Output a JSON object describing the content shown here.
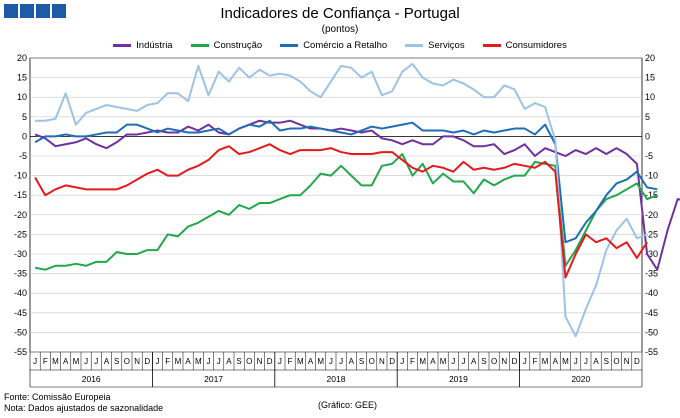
{
  "title": "Indicadores de Confiança - Portugal",
  "subtitle": "(pontos)",
  "footer": {
    "source": "Fonte: Comissão Europeia",
    "note": "Nota: Dados ajustados de sazonalidade",
    "credit": "(Gráfico: GEE)"
  },
  "chart_data": {
    "type": "line",
    "ylim": [
      -55,
      20
    ],
    "yticks": [
      20,
      15,
      10,
      5,
      0,
      -5,
      -10,
      -15,
      -20,
      -25,
      -30,
      -35,
      -40,
      -45,
      -50,
      -55
    ],
    "grid": true,
    "legend_placement": "top-center",
    "month_labels": [
      "J",
      "F",
      "M",
      "A",
      "M",
      "J",
      "J",
      "A",
      "S",
      "O",
      "N",
      "D"
    ],
    "years": [
      "2016",
      "2017",
      "2018",
      "2019",
      "2020"
    ],
    "series": [
      {
        "name": "Indústria",
        "color": "#7030a0",
        "values": [
          0.5,
          -0.5,
          -2.5,
          -2,
          -1.5,
          -0.5,
          -2,
          -3,
          -1.5,
          0.5,
          0.5,
          1,
          1.5,
          1,
          1,
          2.5,
          1.5,
          3,
          1,
          0.5,
          2,
          3,
          4,
          3.5,
          3.5,
          4,
          3,
          2,
          2,
          1.5,
          2,
          1.5,
          1,
          1.5,
          -0.5,
          -1,
          -2,
          -1,
          -2,
          -2,
          0,
          0,
          -1,
          -2.5,
          -2.5,
          -2,
          -4.5,
          -3.5,
          -2,
          -5,
          -3,
          -4,
          -5,
          -3.5,
          -4.5,
          -3,
          -4.5,
          -3,
          -4.5,
          -7,
          -30,
          -34,
          -24,
          -16,
          -16.5,
          -17,
          -16.5,
          -18,
          -17
        ]
      },
      {
        "name": "Construção",
        "color": "#22a84a",
        "values": [
          -33.5,
          -34,
          -33,
          -33,
          -32.5,
          -33,
          -32,
          -32,
          -29.5,
          -30,
          -30,
          -29,
          -29,
          -25,
          -25.5,
          -23,
          -22,
          -20.5,
          -19,
          -20,
          -17.5,
          -18.5,
          -17,
          -17,
          -16,
          -15,
          -15,
          -12.5,
          -9.5,
          -10,
          -7.5,
          -10,
          -12.5,
          -12.5,
          -7.5,
          -7,
          -4.5,
          -10,
          -7,
          -12,
          -9.5,
          -11.5,
          -11.5,
          -14.5,
          -11,
          -12.5,
          -11,
          -10,
          -10,
          -6.5,
          -7,
          -7.5,
          -33,
          -29,
          -24,
          -19,
          -16,
          -15,
          -13.5,
          -12,
          -16,
          -15
        ]
      },
      {
        "name": "Comércio a Retalho",
        "color": "#1f6eb5",
        "values": [
          -1.5,
          0,
          0,
          0.5,
          0,
          0,
          0.5,
          1,
          1,
          3,
          3,
          2,
          1,
          2,
          1.5,
          1,
          1,
          1.5,
          2,
          0.5,
          2,
          3,
          2.5,
          4,
          1.5,
          2,
          2,
          2.5,
          2,
          1.5,
          1,
          0.5,
          1.5,
          2.5,
          2,
          2.5,
          3,
          3.5,
          1.5,
          1.5,
          1.5,
          1,
          1.5,
          0.5,
          1.5,
          1,
          1.5,
          2,
          2,
          0.5,
          3,
          -2,
          -27,
          -26,
          -22,
          -19,
          -15,
          -12,
          -11,
          -9,
          -13,
          -13.5
        ]
      },
      {
        "name": "Serviços",
        "color": "#9cc2e5",
        "values": [
          4,
          4,
          4.5,
          11,
          3,
          6,
          7,
          8,
          7.5,
          7,
          6.5,
          8,
          8.5,
          11,
          11,
          9,
          18,
          10.5,
          16.5,
          14,
          17.5,
          15,
          17,
          15.5,
          16,
          15.5,
          14,
          11.5,
          10,
          14,
          18,
          17.5,
          15,
          16.5,
          10.5,
          11.5,
          16.5,
          18.5,
          15,
          13.5,
          13,
          14.5,
          13.5,
          12,
          10,
          10,
          13,
          12,
          7,
          8.5,
          7.5,
          -1,
          -46,
          -51,
          -44,
          -38,
          -29,
          -24,
          -21,
          -26,
          -25
        ]
      },
      {
        "name": "Consumidores",
        "color": "#e41a1c",
        "values": [
          -10.5,
          -15,
          -13.5,
          -12.5,
          -13,
          -13.5,
          -13.5,
          -13.5,
          -13.5,
          -12.5,
          -11,
          -9.5,
          -8.5,
          -10,
          -10,
          -8.5,
          -7.5,
          -6,
          -3.5,
          -2.5,
          -4.5,
          -4,
          -3,
          -2,
          -3.5,
          -4.5,
          -3.5,
          -3.5,
          -3.5,
          -3,
          -4,
          -4.5,
          -4.5,
          -4.5,
          -4,
          -4,
          -6,
          -8,
          -9,
          -7.5,
          -8,
          -9,
          -6.5,
          -8.5,
          -8,
          -8.5,
          -8,
          -7,
          -7.5,
          -8,
          -6.5,
          -9,
          -36,
          -30,
          -25,
          -27,
          -26,
          -28.5,
          -27,
          -31,
          -27
        ]
      }
    ]
  }
}
